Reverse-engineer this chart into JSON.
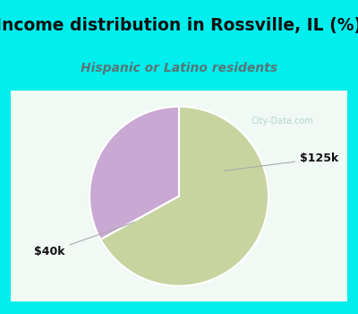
{
  "title": "Income distribution in Rossville, IL (%)",
  "subtitle": "Hispanic or Latino residents",
  "slices": [
    {
      "label": "$125k",
      "value": 33,
      "color": "#c9a8d4"
    },
    {
      "label": "$40k",
      "value": 67,
      "color": "#c8d4a0"
    }
  ],
  "start_angle": 90,
  "title_fontsize": 13.5,
  "subtitle_fontsize": 10,
  "title_color": "#111111",
  "subtitle_color": "#557777",
  "bg_color": "#00eeee",
  "chart_bg": "#ffffff",
  "watermark": "City-Data.com",
  "watermark_color": "#aacccc",
  "label_fontsize": 9,
  "label_color": "#111111",
  "line_color": "#aaaaaa"
}
